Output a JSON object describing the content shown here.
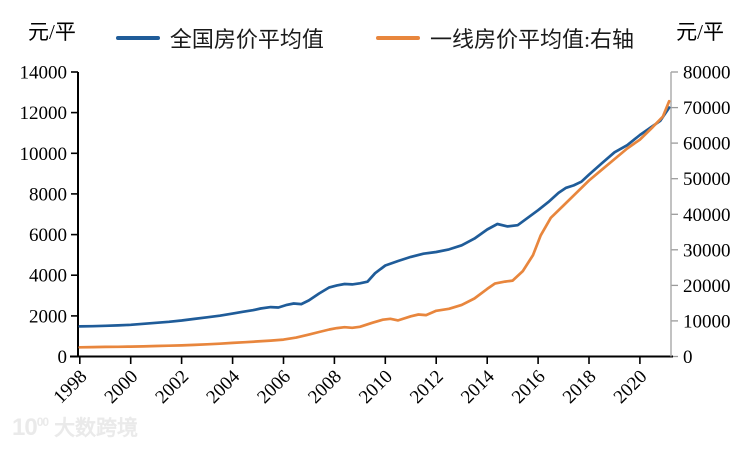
{
  "legend": [
    {
      "label": "全国房价平均值",
      "color": "#1F5C99"
    },
    {
      "label": "一线房价平均值:右轴",
      "color": "#E8863D"
    }
  ],
  "watermark": {
    "logo": "10",
    "logo_sup": "00",
    "text": "大数跨境"
  },
  "chart_data": {
    "type": "line",
    "title": "",
    "legend_position": "top",
    "grid": false,
    "x_range": [
      1997.93,
      2021.22
    ],
    "x_ticks": [
      "1998",
      "2000",
      "2002",
      "2004",
      "2006",
      "2008",
      "2010",
      "2012",
      "2014",
      "2016",
      "2018",
      "2020"
    ],
    "left_axis": {
      "unit": "元/平",
      "range": [
        0,
        14000
      ],
      "ticks": [
        0,
        2000,
        4000,
        6000,
        8000,
        10000,
        12000,
        14000
      ]
    },
    "right_axis": {
      "unit": "元/平",
      "range": [
        0,
        80000
      ],
      "ticks": [
        0,
        10000,
        20000,
        30000,
        40000,
        50000,
        60000,
        70000,
        80000
      ]
    },
    "series": [
      {
        "name": "全国房价平均值",
        "axis": "left",
        "color": "#1F5C99",
        "points": [
          [
            1998,
            1480
          ],
          [
            1998.5,
            1490
          ],
          [
            1999,
            1510
          ],
          [
            1999.5,
            1530
          ],
          [
            2000,
            1560
          ],
          [
            2000.5,
            1610
          ],
          [
            2001,
            1660
          ],
          [
            2001.5,
            1710
          ],
          [
            2002,
            1770
          ],
          [
            2002.5,
            1850
          ],
          [
            2003,
            1930
          ],
          [
            2003.5,
            2010
          ],
          [
            2004,
            2110
          ],
          [
            2004.4,
            2200
          ],
          [
            2004.8,
            2280
          ],
          [
            2005.1,
            2360
          ],
          [
            2005.5,
            2430
          ],
          [
            2005.8,
            2410
          ],
          [
            2006.1,
            2530
          ],
          [
            2006.4,
            2610
          ],
          [
            2006.7,
            2580
          ],
          [
            2007,
            2760
          ],
          [
            2007.4,
            3100
          ],
          [
            2007.8,
            3400
          ],
          [
            2008.1,
            3500
          ],
          [
            2008.4,
            3570
          ],
          [
            2008.7,
            3550
          ],
          [
            2009,
            3600
          ],
          [
            2009.3,
            3680
          ],
          [
            2009.6,
            4100
          ],
          [
            2010,
            4480
          ],
          [
            2010.5,
            4700
          ],
          [
            2011,
            4900
          ],
          [
            2011.5,
            5060
          ],
          [
            2012,
            5140
          ],
          [
            2012.5,
            5270
          ],
          [
            2013,
            5470
          ],
          [
            2013.5,
            5800
          ],
          [
            2014,
            6250
          ],
          [
            2014.4,
            6520
          ],
          [
            2014.8,
            6400
          ],
          [
            2015.2,
            6460
          ],
          [
            2015.6,
            6830
          ],
          [
            2016,
            7200
          ],
          [
            2016.4,
            7600
          ],
          [
            2016.8,
            8050
          ],
          [
            2017.1,
            8300
          ],
          [
            2017.4,
            8420
          ],
          [
            2017.7,
            8600
          ],
          [
            2018,
            8950
          ],
          [
            2018.5,
            9500
          ],
          [
            2019,
            10050
          ],
          [
            2019.5,
            10400
          ],
          [
            2020,
            10900
          ],
          [
            2020.4,
            11250
          ],
          [
            2020.8,
            11600
          ],
          [
            2021.15,
            12250
          ]
        ]
      },
      {
        "name": "一线房价平均值:右轴",
        "axis": "right",
        "color": "#E8863D",
        "points": [
          [
            1998,
            2600
          ],
          [
            1998.5,
            2640
          ],
          [
            1999,
            2690
          ],
          [
            1999.5,
            2730
          ],
          [
            2000,
            2790
          ],
          [
            2000.5,
            2850
          ],
          [
            2001,
            2940
          ],
          [
            2001.5,
            3030
          ],
          [
            2002,
            3130
          ],
          [
            2002.5,
            3260
          ],
          [
            2003,
            3420
          ],
          [
            2003.5,
            3610
          ],
          [
            2004,
            3830
          ],
          [
            2004.5,
            4020
          ],
          [
            2005,
            4260
          ],
          [
            2005.5,
            4460
          ],
          [
            2006,
            4760
          ],
          [
            2006.5,
            5310
          ],
          [
            2007,
            6150
          ],
          [
            2007.4,
            6900
          ],
          [
            2007.8,
            7600
          ],
          [
            2008.1,
            8000
          ],
          [
            2008.4,
            8250
          ],
          [
            2008.7,
            8060
          ],
          [
            2009,
            8350
          ],
          [
            2009.5,
            9500
          ],
          [
            2009.9,
            10350
          ],
          [
            2010.2,
            10600
          ],
          [
            2010.5,
            10150
          ],
          [
            2011,
            11300
          ],
          [
            2011.3,
            11820
          ],
          [
            2011.6,
            11650
          ],
          [
            2012,
            12850
          ],
          [
            2012.5,
            13400
          ],
          [
            2013,
            14500
          ],
          [
            2013.5,
            16300
          ],
          [
            2014,
            19000
          ],
          [
            2014.3,
            20500
          ],
          [
            2014.7,
            21050
          ],
          [
            2015,
            21350
          ],
          [
            2015.4,
            24000
          ],
          [
            2015.8,
            28500
          ],
          [
            2016.1,
            34000
          ],
          [
            2016.5,
            39000
          ],
          [
            2017,
            42500
          ],
          [
            2017.5,
            46000
          ],
          [
            2018,
            49500
          ],
          [
            2018.5,
            52500
          ],
          [
            2019,
            55500
          ],
          [
            2019.5,
            58500
          ],
          [
            2020,
            61000
          ],
          [
            2020.5,
            64500
          ],
          [
            2020.9,
            67500
          ],
          [
            2021.15,
            71800
          ]
        ]
      }
    ]
  }
}
